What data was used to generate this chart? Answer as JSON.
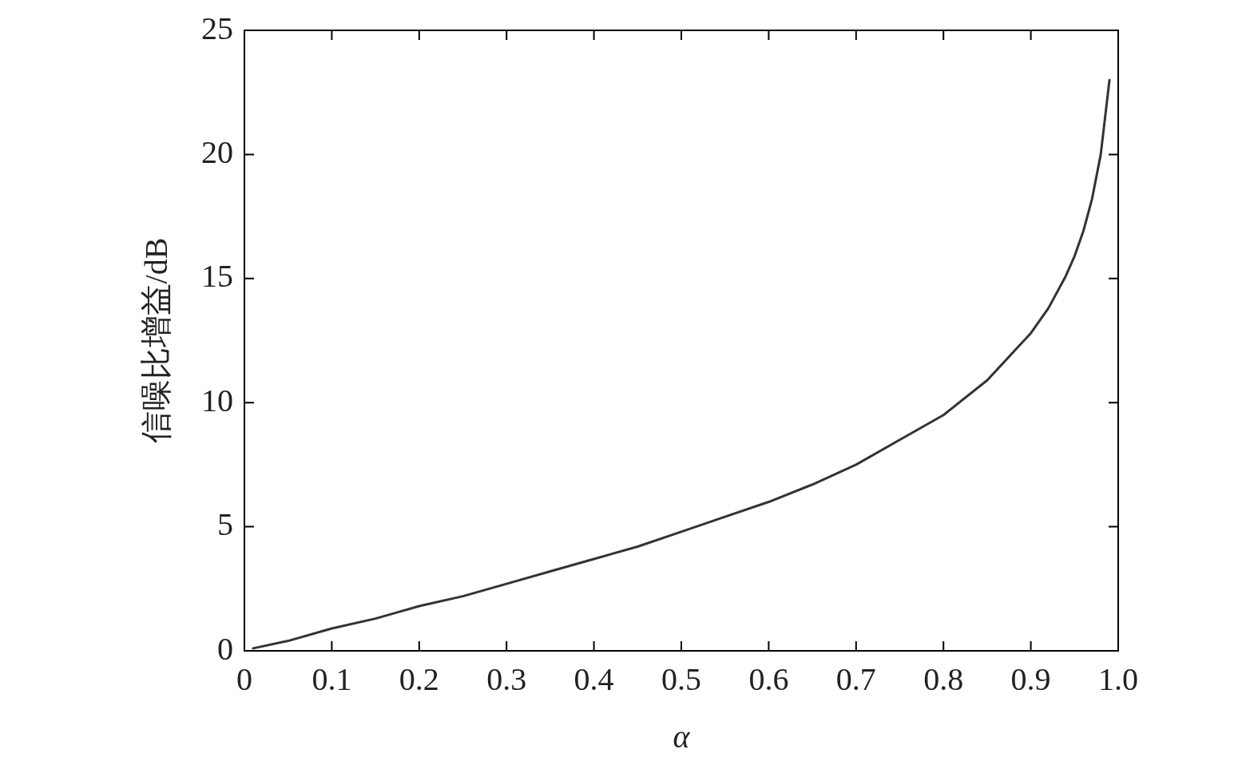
{
  "chart_data": {
    "type": "line",
    "xlabel": "α",
    "ylabel": "信噪比增益/dB",
    "x": [
      0.01,
      0.05,
      0.1,
      0.15,
      0.2,
      0.25,
      0.3,
      0.35,
      0.4,
      0.45,
      0.5,
      0.55,
      0.6,
      0.65,
      0.7,
      0.75,
      0.8,
      0.85,
      0.9,
      0.92,
      0.94,
      0.95,
      0.96,
      0.97,
      0.98,
      0.99
    ],
    "series": [
      {
        "color": "#333333",
        "values": [
          0.1,
          0.4,
          0.9,
          1.3,
          1.8,
          2.2,
          2.7,
          3.2,
          3.7,
          4.2,
          4.8,
          5.4,
          6.0,
          6.7,
          7.5,
          8.5,
          9.5,
          10.9,
          12.8,
          13.8,
          15.1,
          15.9,
          16.9,
          18.2,
          20.0,
          23.0
        ]
      }
    ],
    "xlim": [
      0,
      1
    ],
    "xticks": [
      0,
      0.1,
      0.2,
      0.3,
      0.4,
      0.5,
      0.6,
      0.7,
      0.8,
      0.9,
      {
        "value": 1,
        "label": "1.0"
      }
    ],
    "ylim": [
      0,
      25
    ],
    "yticks": [
      0,
      5,
      10,
      15,
      20,
      25
    ],
    "grid": false,
    "legend": false,
    "marker": "none",
    "line_style": "solid"
  }
}
